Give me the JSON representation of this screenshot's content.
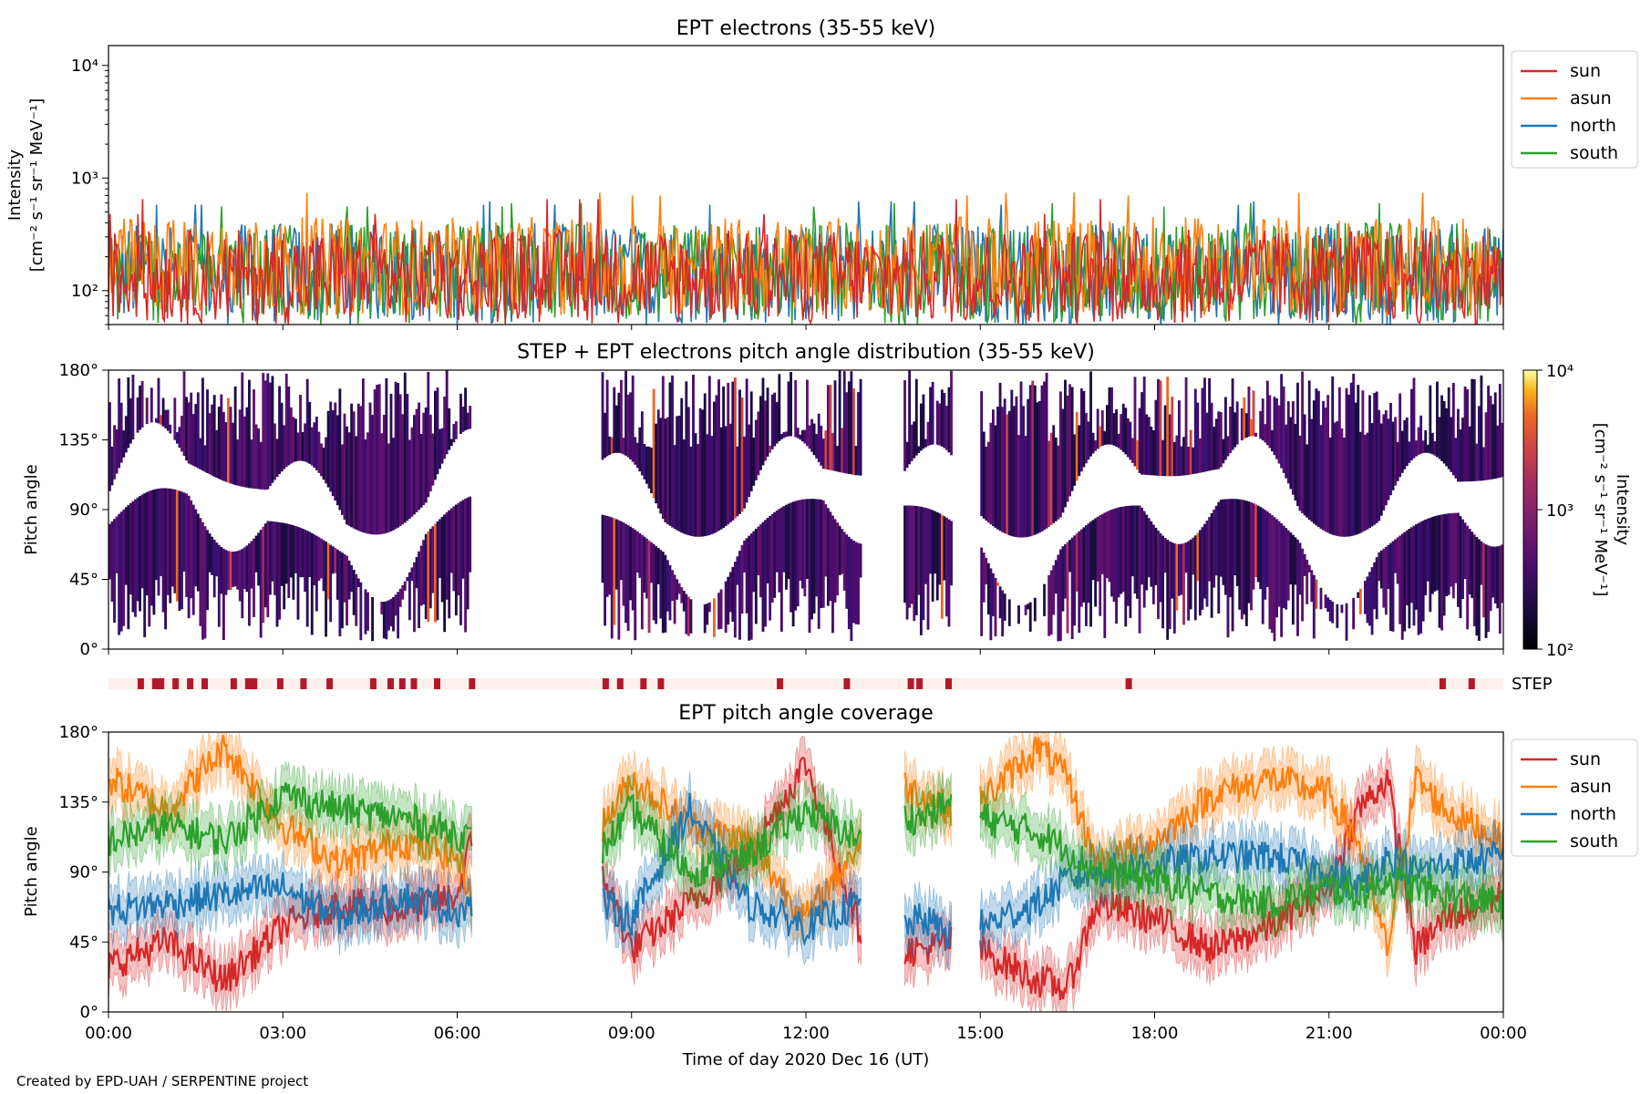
{
  "credit": "Created by EPD-UAH / SERPENTINE project",
  "colors": {
    "sun": "#d62728",
    "asun": "#ff7f0e",
    "north": "#1f77b4",
    "south": "#2ca02c",
    "step_bar": "#b2182b",
    "step_bg": "#fdf0ed"
  },
  "chart_data": [
    {
      "type": "line",
      "title": "EPT electrons (35-55 keV)",
      "ylabel_line1": "Intensity",
      "ylabel_line2": "[cm⁻² s⁻¹ sr⁻¹ MeV⁻¹]",
      "yscale": "log",
      "ylim": [
        50,
        15000
      ],
      "yticks": [
        {
          "value": 100,
          "label": "10²"
        },
        {
          "value": 1000,
          "label": "10³"
        },
        {
          "value": 10000,
          "label": "10⁴"
        }
      ],
      "xlim_hours": [
        0,
        24
      ],
      "legend_position": "outside-right-top",
      "series": [
        {
          "name": "sun",
          "color": "#d62728",
          "typical_range": [
            50,
            350
          ],
          "peak_values": [
            480,
            650
          ]
        },
        {
          "name": "asun",
          "color": "#ff7f0e",
          "typical_range": [
            60,
            450
          ],
          "peak_values": [
            700,
            740
          ]
        },
        {
          "name": "north",
          "color": "#1f77b4",
          "typical_range": [
            50,
            400
          ],
          "peak_values": [
            580,
            620
          ]
        },
        {
          "name": "south",
          "color": "#2ca02c",
          "typical_range": [
            50,
            400
          ],
          "peak_values": [
            560,
            600
          ]
        }
      ]
    },
    {
      "type": "heatmap",
      "title": "STEP + EPT electrons pitch angle distribution (35-55 keV)",
      "ylabel": "Pitch angle",
      "ylim_deg": [
        0,
        180
      ],
      "yticks": [
        "0°",
        "45°",
        "90°",
        "135°",
        "180°"
      ],
      "colorbar": {
        "label_line1": "Intensity",
        "label_line2": "[cm⁻² s⁻¹ sr⁻¹ MeV⁻¹]",
        "scale": "log",
        "range": [
          100,
          10000
        ],
        "ticks": [
          "10²",
          "10³",
          "10⁴"
        ],
        "colormap": "inferno"
      },
      "data_gaps_hours": [
        [
          6.25,
          8.5
        ],
        [
          12.95,
          13.7
        ],
        [
          14.5,
          15.0
        ]
      ]
    },
    {
      "type": "bar",
      "label": "STEP",
      "step_active_hours": [
        0.5,
        0.75,
        0.85,
        1.1,
        1.35,
        1.6,
        2.1,
        2.35,
        2.45,
        2.9,
        3.3,
        3.75,
        4.5,
        4.8,
        5.0,
        5.2,
        5.6,
        6.2,
        8.5,
        8.75,
        9.15,
        9.45,
        11.5,
        12.65,
        13.75,
        13.9,
        14.4,
        17.5,
        22.9,
        23.4
      ]
    },
    {
      "type": "line",
      "title": "EPT pitch angle coverage",
      "ylabel": "Pitch angle",
      "xlabel": "Time of day 2020 Dec 16 (UT)",
      "ylim_deg": [
        0,
        180
      ],
      "yticks": [
        "0°",
        "45°",
        "90°",
        "135°",
        "180°"
      ],
      "xticks": [
        "00:00",
        "03:00",
        "06:00",
        "09:00",
        "12:00",
        "15:00",
        "18:00",
        "21:00",
        "00:00"
      ],
      "xlim_hours": [
        0,
        24
      ],
      "legend_position": "outside-right-top",
      "x_hours": [
        0,
        1,
        2,
        3,
        4,
        5,
        6,
        6.25,
        8.5,
        9,
        10,
        11,
        12,
        12.95,
        13.7,
        14,
        14.5,
        15,
        16,
        16.5,
        17,
        18,
        19,
        20,
        21,
        21.5,
        22,
        22.5,
        23,
        24
      ],
      "series": [
        {
          "name": "sun",
          "color": "#d62728",
          "values": [
            30,
            45,
            20,
            55,
            70,
            65,
            75,
            110,
            90,
            40,
            70,
            100,
            160,
            50,
            40,
            40,
            45,
            40,
            20,
            15,
            70,
            60,
            40,
            55,
            80,
            130,
            150,
            40,
            60,
            75
          ]
        },
        {
          "name": "asun",
          "color": "#ff7f0e",
          "values": [
            150,
            130,
            170,
            120,
            95,
            110,
            100,
            75,
            120,
            150,
            120,
            110,
            60,
            110,
            145,
            140,
            130,
            135,
            170,
            150,
            95,
            110,
            140,
            150,
            140,
            110,
            40,
            150,
            130,
            110
          ]
        },
        {
          "name": "north",
          "color": "#1f77b4",
          "values": [
            65,
            70,
            75,
            80,
            60,
            75,
            65,
            70,
            70,
            60,
            130,
            70,
            55,
            70,
            55,
            60,
            50,
            55,
            70,
            85,
            90,
            95,
            100,
            100,
            90,
            80,
            100,
            90,
            95,
            100
          ]
        },
        {
          "name": "south",
          "color": "#2ca02c",
          "values": [
            110,
            120,
            110,
            140,
            130,
            125,
            115,
            110,
            105,
            130,
            90,
            100,
            130,
            110,
            125,
            125,
            135,
            125,
            115,
            105,
            90,
            85,
            75,
            70,
            80,
            75,
            85,
            80,
            75,
            70
          ]
        }
      ]
    }
  ]
}
